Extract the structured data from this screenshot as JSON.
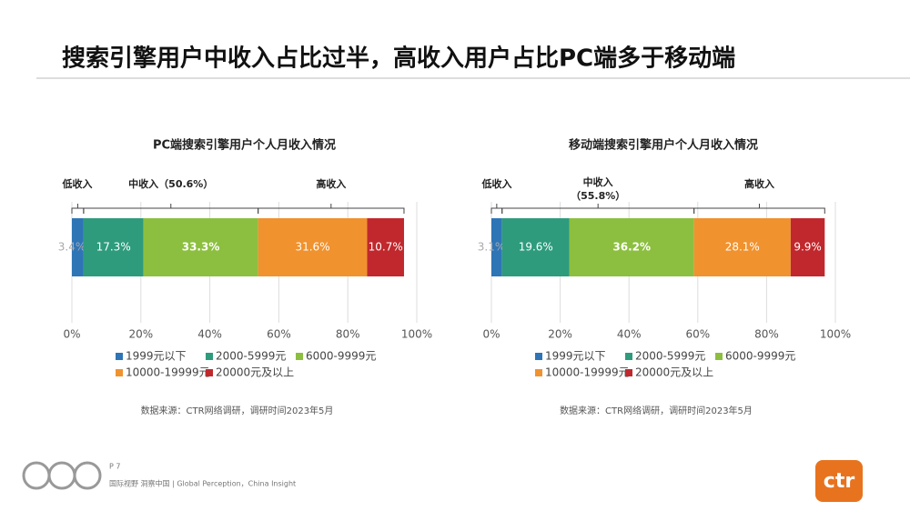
{
  "page": {
    "title": "搜索引擎用户中收入占比过半，高收入用户占比PC端多于移动端",
    "page_number": "P 7",
    "footer": "国际视野  洞察中国 | Global Perception，China Insight",
    "logo": "ctr"
  },
  "chart_data": [
    {
      "type": "stacked_bar",
      "title": "PC端搜索引擎用户个人月收入情况",
      "categories": [
        null
      ],
      "series": [
        {
          "name": "1999元以下",
          "color": "#2e75b6",
          "values": [
            3.4
          ],
          "value_labels": [
            "3.4%"
          ]
        },
        {
          "name": "2000-5999元",
          "color": "#2e9b7d",
          "values": [
            17.3
          ],
          "value_labels": [
            "17.3%"
          ]
        },
        {
          "name": "6000-9999元",
          "color": "#8cbf3f",
          "values": [
            33.3
          ],
          "value_labels": [
            "33.3%"
          ]
        },
        {
          "name": "10000-19999元",
          "color": "#f0922e",
          "values": [
            31.6
          ],
          "value_labels": [
            "31.6%"
          ]
        },
        {
          "name": "20000元及以上",
          "color": "#c0282d",
          "values": [
            10.7
          ],
          "value_labels": [
            "10.7%"
          ]
        }
      ],
      "groups": [
        {
          "label": "低收入"
        },
        {
          "label": "中收入（50.6%）"
        },
        {
          "label": "高收入"
        }
      ],
      "xlim": [
        0,
        100
      ],
      "xticks": [
        {
          "value": 0,
          "label": "0%"
        },
        {
          "value": 20,
          "label": "20%"
        },
        {
          "value": 40,
          "label": "40%"
        },
        {
          "value": 60,
          "label": "60%"
        },
        {
          "value": 80,
          "label": "80%"
        },
        {
          "value": 100,
          "label": "100%"
        }
      ],
      "grid": true,
      "source": "数据来源：CTR网络调研，调研时间2023年5月"
    },
    {
      "type": "stacked_bar",
      "title": "移动端搜索引擎用户个人月收入情况",
      "categories": [
        null
      ],
      "series": [
        {
          "name": "1999元以下",
          "color": "#2e75b6",
          "values": [
            3.1
          ],
          "value_labels": [
            "3.1%"
          ]
        },
        {
          "name": "2000-5999元",
          "color": "#2e9b7d",
          "values": [
            19.6
          ],
          "value_labels": [
            "19.6%"
          ]
        },
        {
          "name": "6000-9999元",
          "color": "#8cbf3f",
          "values": [
            36.2
          ],
          "value_labels": [
            "36.2%"
          ]
        },
        {
          "name": "10000-19999元",
          "color": "#f0922e",
          "values": [
            28.1
          ],
          "value_labels": [
            "28.1%"
          ]
        },
        {
          "name": "20000元及以上",
          "color": "#c0282d",
          "values": [
            9.9
          ],
          "value_labels": [
            "9.9%"
          ]
        }
      ],
      "groups": [
        {
          "label": "低收入"
        },
        {
          "label": "中收入",
          "note": "（55.8%）"
        },
        {
          "label": "高收入"
        }
      ],
      "xlim": [
        0,
        100
      ],
      "xticks": [
        {
          "value": 0,
          "label": "0%"
        },
        {
          "value": 20,
          "label": "20%"
        },
        {
          "value": 40,
          "label": "40%"
        },
        {
          "value": 60,
          "label": "60%"
        },
        {
          "value": 80,
          "label": "80%"
        },
        {
          "value": 100,
          "label": "100%"
        }
      ],
      "grid": true,
      "source": "数据来源：CTR网络调研，调研时间2023年5月"
    }
  ]
}
